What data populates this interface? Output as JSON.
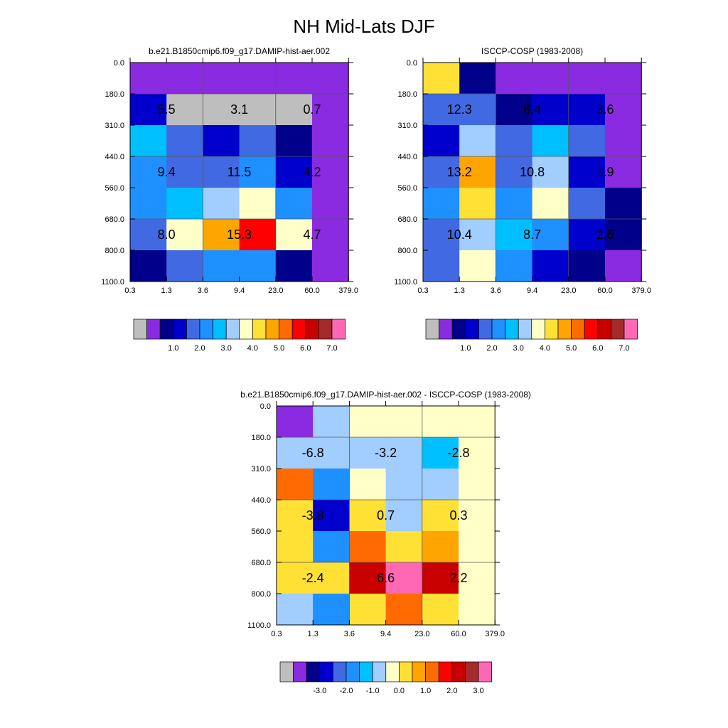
{
  "title": "NH Mid-Lats DJF",
  "colors": {
    "missing": "#bebebe",
    "palette": [
      "#8a2be2",
      "#00008b",
      "#0000cd",
      "#4169e1",
      "#1e90ff",
      "#00bfff",
      "#a2cdff",
      "#ffffc8",
      "#ffe135",
      "#ffa500",
      "#ff6b00",
      "#ff0000",
      "#c80000",
      "#a52a2a",
      "#ff69b4"
    ]
  },
  "chart_data": [
    {
      "type": "heatmap",
      "title": "b.e21.B1850cmip6.f09_g17.DAMIP-hist-aer.002",
      "x_ticks": [
        "0.3",
        "1.3",
        "3.6",
        "9.4",
        "23.0",
        "60.0",
        "379.0"
      ],
      "y_ticks": [
        "0.0",
        "180.0",
        "310.0",
        "440.0",
        "560.0",
        "680.0",
        "800.0",
        "1100.0"
      ],
      "cells": [
        [
          0,
          0,
          0,
          0,
          0,
          0
        ],
        [
          2,
          -1,
          -1,
          -1,
          -1,
          0
        ],
        [
          5,
          3,
          2,
          3,
          1,
          0
        ],
        [
          4,
          3,
          3,
          4,
          2,
          0
        ],
        [
          4,
          5,
          6,
          7,
          4,
          0
        ],
        [
          3,
          7,
          9,
          11,
          7,
          0
        ],
        [
          1,
          3,
          4,
          4,
          1,
          0
        ]
      ],
      "annotations": [
        {
          "row": 1,
          "col": 0,
          "text": "5.5"
        },
        {
          "row": 1,
          "col": 2,
          "text": "3.1"
        },
        {
          "row": 1,
          "col": 4,
          "text": "0.7"
        },
        {
          "row": 3,
          "col": 0,
          "text": "9.4"
        },
        {
          "row": 3,
          "col": 2,
          "text": "11.5"
        },
        {
          "row": 3,
          "col": 4,
          "text": "4.2"
        },
        {
          "row": 5,
          "col": 0,
          "text": "8.0"
        },
        {
          "row": 5,
          "col": 2,
          "text": "15.3"
        },
        {
          "row": 5,
          "col": 4,
          "text": "4.7"
        }
      ],
      "colorbar": {
        "labels": [
          "1.0",
          "2.0",
          "3.0",
          "4.0",
          "5.0",
          "6.0",
          "7.0"
        ]
      }
    },
    {
      "type": "heatmap",
      "title": "ISCCP-COSP (1983-2008)",
      "x_ticks": [
        "0.3",
        "1.3",
        "3.6",
        "9.4",
        "23.0",
        "60.0",
        "379.0"
      ],
      "y_ticks": [
        "0.0",
        "180.0",
        "310.0",
        "440.0",
        "560.0",
        "680.0",
        "800.0",
        "1100.0"
      ],
      "cells": [
        [
          8,
          1,
          0,
          0,
          0,
          0
        ],
        [
          3,
          3,
          1,
          2,
          2,
          0
        ],
        [
          2,
          6,
          3,
          5,
          3,
          0
        ],
        [
          3,
          9,
          3,
          6,
          2,
          0
        ],
        [
          4,
          8,
          4,
          7,
          3,
          1
        ],
        [
          3,
          6,
          5,
          4,
          2,
          1
        ],
        [
          3,
          7,
          4,
          2,
          1,
          0
        ]
      ],
      "annotations": [
        {
          "row": 1,
          "col": 0,
          "text": "12.3"
        },
        {
          "row": 1,
          "col": 2,
          "text": "6.4"
        },
        {
          "row": 1,
          "col": 4,
          "text": "3.6"
        },
        {
          "row": 3,
          "col": 0,
          "text": "13.2"
        },
        {
          "row": 3,
          "col": 2,
          "text": "10.8"
        },
        {
          "row": 3,
          "col": 4,
          "text": "3.9"
        },
        {
          "row": 5,
          "col": 0,
          "text": "10.4"
        },
        {
          "row": 5,
          "col": 2,
          "text": "8.7"
        },
        {
          "row": 5,
          "col": 4,
          "text": "2.6"
        }
      ],
      "colorbar": {
        "labels": [
          "1.0",
          "2.0",
          "3.0",
          "4.0",
          "5.0",
          "6.0",
          "7.0"
        ]
      }
    },
    {
      "type": "heatmap",
      "title": "b.e21.B1850cmip6.f09_g17.DAMIP-hist-aer.002 - ISCCP-COSP (1983-2008)",
      "x_ticks": [
        "0.3",
        "1.3",
        "3.6",
        "9.4",
        "23.0",
        "60.0",
        "379.0"
      ],
      "y_ticks": [
        "0.0",
        "180.0",
        "310.0",
        "440.0",
        "560.0",
        "680.0",
        "800.0",
        "1100.0"
      ],
      "cells": [
        [
          0,
          6,
          7,
          7,
          7,
          7
        ],
        [
          6,
          6,
          6,
          6,
          5,
          7
        ],
        [
          10,
          4,
          7,
          6,
          6,
          7
        ],
        [
          8,
          2,
          8,
          6,
          8,
          7
        ],
        [
          8,
          4,
          10,
          8,
          9,
          7
        ],
        [
          8,
          8,
          12,
          14,
          12,
          7
        ],
        [
          6,
          4,
          8,
          10,
          8,
          7
        ]
      ],
      "annotations": [
        {
          "row": 1,
          "col": 0,
          "text": "-6.8"
        },
        {
          "row": 1,
          "col": 2,
          "text": "-3.2"
        },
        {
          "row": 1,
          "col": 4,
          "text": "-2.8"
        },
        {
          "row": 3,
          "col": 0,
          "text": "-3.8"
        },
        {
          "row": 3,
          "col": 2,
          "text": "0.7"
        },
        {
          "row": 3,
          "col": 4,
          "text": "0.3"
        },
        {
          "row": 5,
          "col": 0,
          "text": "-2.4"
        },
        {
          "row": 5,
          "col": 2,
          "text": "6.6"
        },
        {
          "row": 5,
          "col": 4,
          "text": "2.2"
        }
      ],
      "colorbar": {
        "labels": [
          "-3.0",
          "-2.0",
          "-1.0",
          "0.0",
          "1.0",
          "2.0",
          "3.0"
        ]
      }
    }
  ]
}
